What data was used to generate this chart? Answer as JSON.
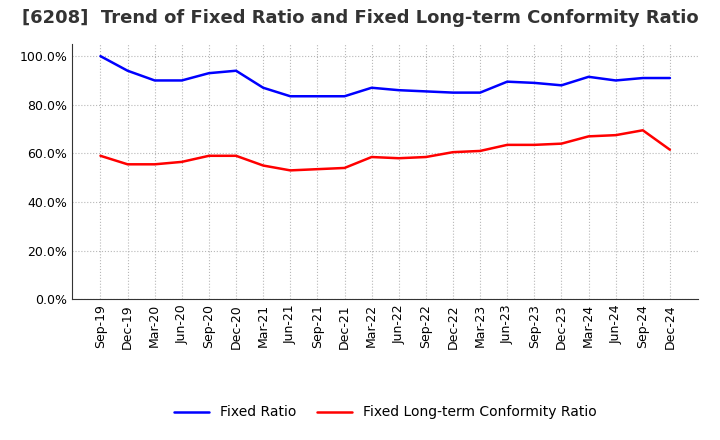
{
  "title": "[6208]  Trend of Fixed Ratio and Fixed Long-term Conformity Ratio",
  "x_labels": [
    "Sep-19",
    "Dec-19",
    "Mar-20",
    "Jun-20",
    "Sep-20",
    "Dec-20",
    "Mar-21",
    "Jun-21",
    "Sep-21",
    "Dec-21",
    "Mar-22",
    "Jun-22",
    "Sep-22",
    "Dec-22",
    "Mar-23",
    "Jun-23",
    "Sep-23",
    "Dec-23",
    "Mar-24",
    "Jun-24",
    "Sep-24",
    "Dec-24"
  ],
  "fixed_ratio": [
    100.0,
    94.0,
    90.0,
    90.0,
    93.0,
    94.0,
    87.0,
    83.5,
    83.5,
    83.5,
    87.0,
    86.0,
    85.5,
    85.0,
    85.0,
    89.5,
    89.0,
    88.0,
    91.5,
    90.0,
    91.0,
    91.0
  ],
  "fixed_lt_ratio": [
    59.0,
    55.5,
    55.5,
    56.5,
    59.0,
    59.0,
    55.0,
    53.0,
    53.5,
    54.0,
    58.5,
    58.0,
    58.5,
    60.5,
    61.0,
    63.5,
    63.5,
    64.0,
    67.0,
    67.5,
    69.5,
    61.5
  ],
  "fixed_ratio_color": "#0000ff",
  "fixed_lt_ratio_color": "#ff0000",
  "ylim": [
    0,
    105
  ],
  "yticks": [
    0,
    20,
    40,
    60,
    80,
    100
  ],
  "background_color": "#ffffff",
  "plot_bg_color": "#ffffff",
  "grid_color": "#999999",
  "line_width": 1.8,
  "title_fontsize": 13,
  "legend_fontsize": 10,
  "tick_fontsize": 9
}
